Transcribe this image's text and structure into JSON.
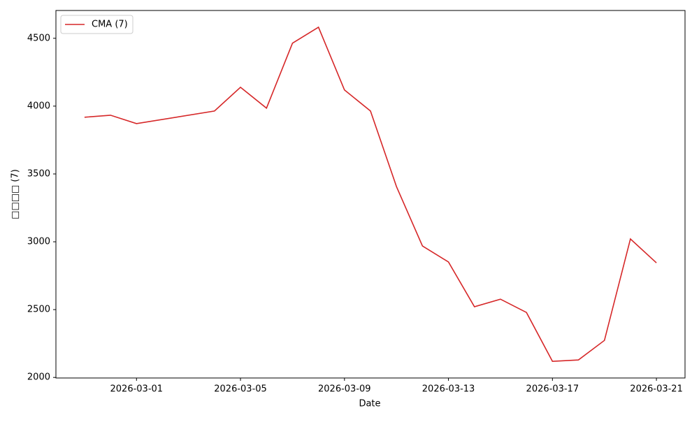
{
  "chart_data": {
    "type": "line",
    "xlabel": "Date",
    "ylabel": "□□□□ (7)",
    "x": [
      "2026-02-27",
      "2026-02-28",
      "2026-03-01",
      "2026-03-04",
      "2026-03-05",
      "2026-03-06",
      "2026-03-07",
      "2026-03-08",
      "2026-03-09",
      "2026-03-10",
      "2026-03-11",
      "2026-03-12",
      "2026-03-13",
      "2026-03-14",
      "2026-03-15",
      "2026-03-16",
      "2026-03-17",
      "2026-03-18",
      "2026-03-19",
      "2026-03-20",
      "2026-03-21"
    ],
    "series": [
      {
        "name": "CMA (7)",
        "color": "#d62728",
        "values": [
          3918,
          3933,
          3871,
          3964,
          4139,
          3985,
          4464,
          4582,
          4119,
          3964,
          3407,
          2969,
          2851,
          2521,
          2577,
          2479,
          2119,
          2129,
          2273,
          3021,
          2845
        ]
      }
    ],
    "xlim": [
      "2026-02-25T21:36",
      "2026-03-22T02:24"
    ],
    "xticks": [
      "2026-03-01",
      "2026-03-05",
      "2026-03-09",
      "2026-03-13",
      "2026-03-17",
      "2026-03-21"
    ],
    "ylim": [
      1996,
      4705
    ],
    "yticks": [
      2000,
      2500,
      3000,
      3500,
      4000,
      4500
    ],
    "legend": "upper-left"
  }
}
